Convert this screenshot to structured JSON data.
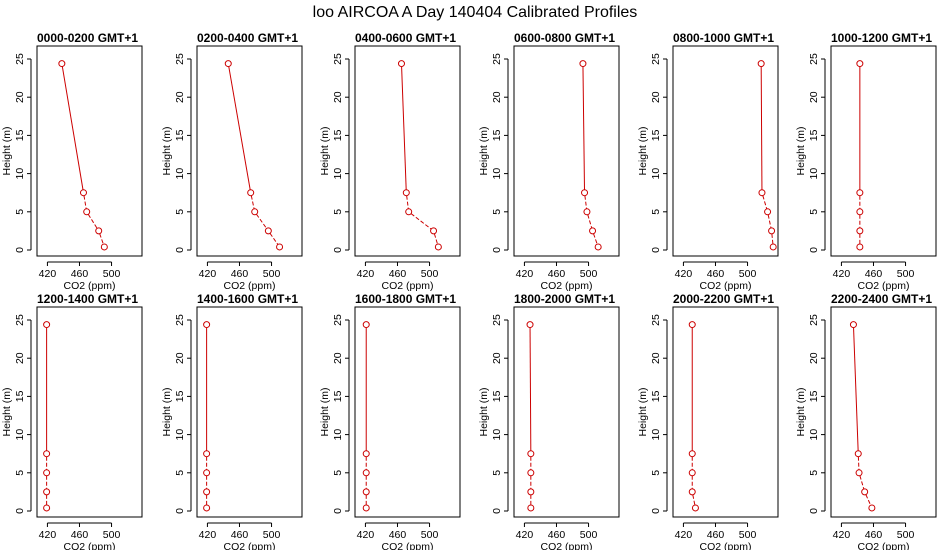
{
  "title": "loo AIRCOA A  Day 140404  Calibrated Profiles",
  "chart_data": {
    "type": "line",
    "xlabel": "CO2 (ppm)",
    "ylabel": "Height (m)",
    "xlim": [
      407,
      538
    ],
    "ylim": [
      0,
      25
    ],
    "x_ticks": [
      420,
      460,
      500
    ],
    "y_ticks": [
      0,
      5,
      10,
      15,
      20,
      25
    ],
    "line_color": "#cc0000",
    "marker": "open-circle",
    "heights": [
      24.4,
      7.5,
      5.0,
      2.5,
      0.4
    ],
    "panels": [
      {
        "title": "0000-0200 GMT+1",
        "co2": [
          438,
          465,
          469,
          484,
          491
        ]
      },
      {
        "title": "0200-0400 GMT+1",
        "co2": [
          446,
          474,
          479,
          496,
          510
        ]
      },
      {
        "title": "0400-0600 GMT+1",
        "co2": [
          465,
          471,
          474,
          505,
          511
        ]
      },
      {
        "title": "0600-0800 GMT+1",
        "co2": [
          493,
          495,
          498,
          505,
          512
        ]
      },
      {
        "title": "0800-1000 GMT+1",
        "co2": [
          517,
          518,
          525,
          530,
          532
        ]
      },
      {
        "title": "1000-1200 GMT+1",
        "co2": [
          443,
          443,
          443,
          443,
          443
        ]
      },
      {
        "title": "1200-1400 GMT+1",
        "co2": [
          419,
          419,
          419,
          419,
          419
        ]
      },
      {
        "title": "1400-1600 GMT+1",
        "co2": [
          419,
          419,
          419,
          419,
          419
        ]
      },
      {
        "title": "1600-1800 GMT+1",
        "co2": [
          421,
          421,
          421,
          421,
          421
        ]
      },
      {
        "title": "1800-2000 GMT+1",
        "co2": [
          427,
          428,
          428,
          428,
          428
        ]
      },
      {
        "title": "2000-2200 GMT+1",
        "co2": [
          431,
          431,
          431,
          431,
          435
        ]
      },
      {
        "title": "2200-2400 GMT+1",
        "co2": [
          435,
          441,
          442,
          449,
          458
        ]
      }
    ]
  }
}
